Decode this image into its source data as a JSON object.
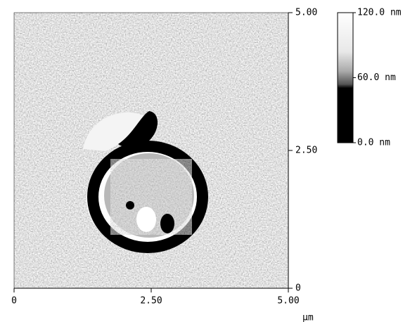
{
  "image_axes": {
    "xlim": [
      0,
      5
    ],
    "ylim": [
      0,
      5
    ],
    "xticks": [
      {
        "value": 0,
        "label": "0"
      },
      {
        "value": 2.5,
        "label": "2.50"
      },
      {
        "value": 5,
        "label": "5.00"
      }
    ],
    "yticks": [
      {
        "value": 0,
        "label": "0"
      },
      {
        "value": 2.5,
        "label": "2.50"
      },
      {
        "value": 5,
        "label": "5.00"
      }
    ],
    "unit": "µm"
  },
  "colorbar": {
    "lim": [
      0,
      120
    ],
    "ticks": [
      {
        "value": 0,
        "label": "0.0 nm"
      },
      {
        "value": 60,
        "label": "60.0 nm"
      },
      {
        "value": 120,
        "label": "120.0 nm"
      }
    ]
  }
}
